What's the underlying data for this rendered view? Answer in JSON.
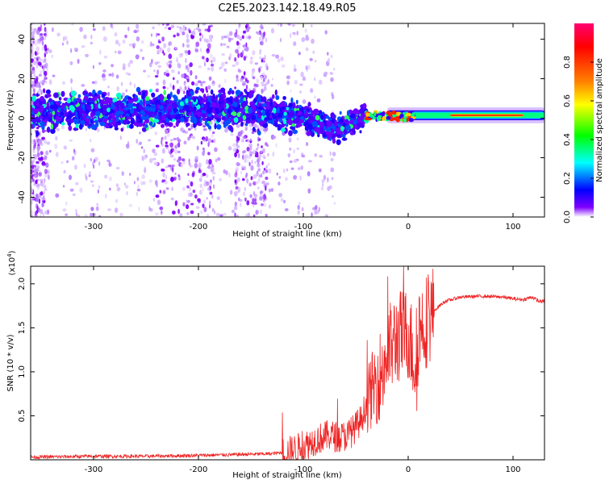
{
  "chart_data": [
    {
      "type": "heatmap",
      "title": "C2E5.2023.142.18.49.R05",
      "xlabel": "Height of straight line (km)",
      "ylabel": "Frequency (Hz)",
      "xlim": [
        -360,
        130
      ],
      "ylim": [
        -50,
        48
      ],
      "x_ticks": [
        -300,
        -200,
        -100,
        0,
        100
      ],
      "y_ticks": [
        -40,
        -20,
        0,
        20,
        40
      ],
      "colorbar": {
        "label": "Normalized spectral amplitude",
        "range": [
          0.0,
          1.0
        ],
        "ticks": [
          0.0,
          0.2,
          0.4,
          0.6,
          0.8
        ],
        "colormap": [
          "#ff0070",
          "#ff0000",
          "#ff8000",
          "#ffff00",
          "#00ff00",
          "#00ffff",
          "#0000ff",
          "#8000ff",
          "#ffffff"
        ]
      },
      "signal_band": [
        {
          "x": -360,
          "f": 3
        },
        {
          "x": -300,
          "f": 4
        },
        {
          "x": -250,
          "f": 4
        },
        {
          "x": -200,
          "f": 5
        },
        {
          "x": -150,
          "f": 4
        },
        {
          "x": -120,
          "f": 2
        },
        {
          "x": -100,
          "f": 0
        },
        {
          "x": -80,
          "f": -3
        },
        {
          "x": -70,
          "f": -6
        },
        {
          "x": -60,
          "f": -4
        },
        {
          "x": -40,
          "f": 1
        },
        {
          "x": -20,
          "f": 1
        },
        {
          "x": 0,
          "f": 1
        },
        {
          "x": 50,
          "f": 1.5
        },
        {
          "x": 100,
          "f": 1.5
        },
        {
          "x": 130,
          "f": 1.5
        }
      ]
    },
    {
      "type": "line",
      "xlabel": "Height of straight line (km)",
      "ylabel": "SNR (10 * v/v)",
      "y_multiplier": "(x10",
      "y_multiplier_exp": "4",
      "y_multiplier_close": ")",
      "xlim": [
        -360,
        130
      ],
      "ylim": [
        0,
        2.2
      ],
      "x_ticks": [
        -300,
        -200,
        -100,
        0,
        100
      ],
      "y_ticks": [
        0.5,
        1.0,
        1.5,
        2.0
      ],
      "color": "#ee2222",
      "series": [
        {
          "name": "SNR",
          "x": [
            -360,
            -300,
            -250,
            -200,
            -160,
            -130,
            -115,
            -100,
            -90,
            -75,
            -65,
            -55,
            -45,
            -38,
            -30,
            -25,
            -20,
            -15,
            -10,
            -5,
            0,
            8,
            10,
            15,
            25,
            35,
            50,
            70,
            90,
            100,
            110,
            118,
            125,
            130
          ],
          "y": [
            0.03,
            0.04,
            0.04,
            0.05,
            0.06,
            0.07,
            0.09,
            0.15,
            0.22,
            0.28,
            0.25,
            0.3,
            0.45,
            0.7,
            0.9,
            1.0,
            1.2,
            1.3,
            1.4,
            1.4,
            1.45,
            1.0,
            1.5,
            1.55,
            1.7,
            1.8,
            1.85,
            1.86,
            1.85,
            1.83,
            1.82,
            1.85,
            1.8,
            1.8
          ]
        }
      ]
    }
  ]
}
